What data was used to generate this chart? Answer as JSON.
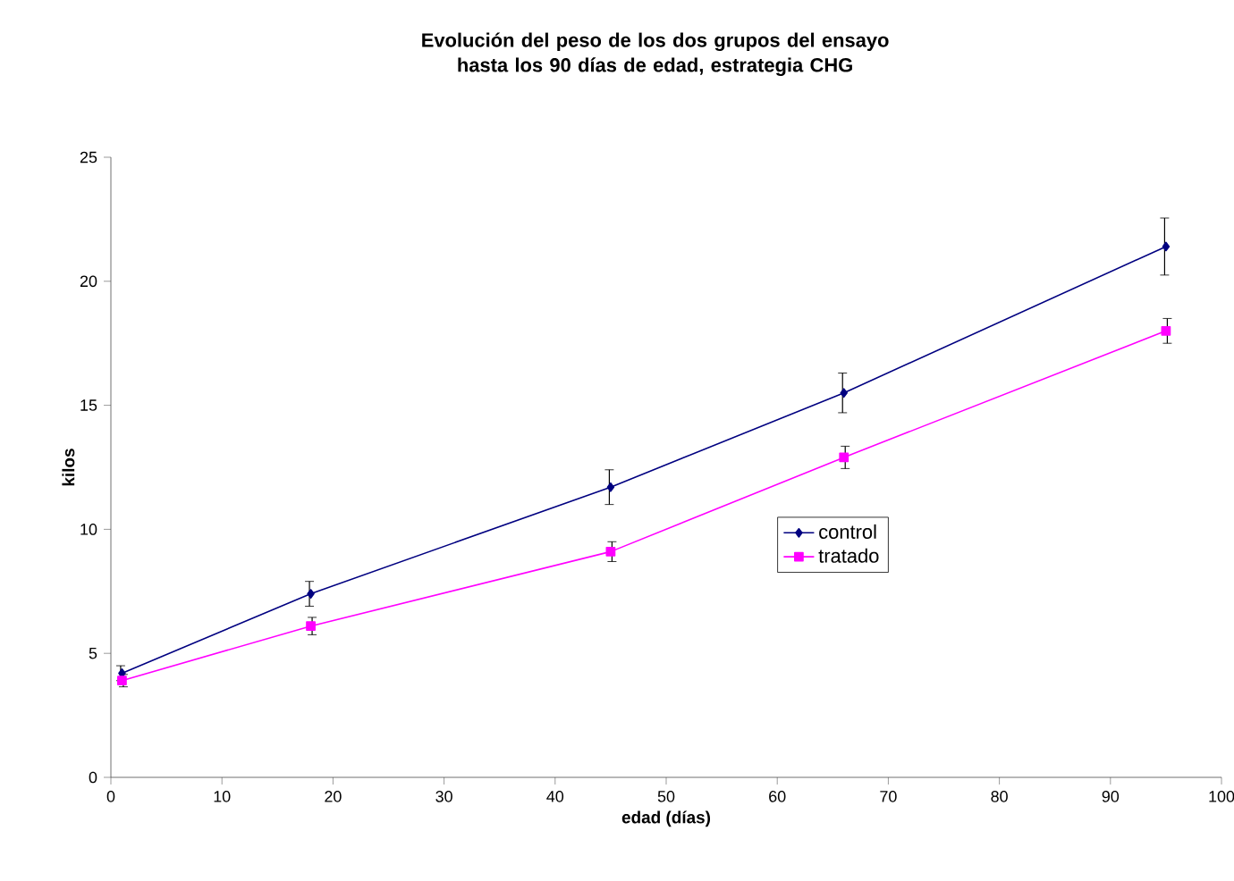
{
  "chart_data": {
    "type": "line",
    "title": "Evolución del peso de los dos grupos del ensayo hasta los 90 días de edad, estrategia  CHG",
    "xlabel": "edad (días)",
    "ylabel": "kilos",
    "x": [
      1,
      18,
      45,
      66,
      95
    ],
    "series": [
      {
        "name": "control",
        "color": "#000080",
        "marker": "diamond",
        "values": [
          4.2,
          7.4,
          11.7,
          15.5,
          21.4
        ],
        "errors": [
          0.3,
          0.5,
          0.7,
          0.8,
          1.15
        ]
      },
      {
        "name": "tratado",
        "color": "#ff00ff",
        "marker": "square",
        "values": [
          3.9,
          6.1,
          9.1,
          12.9,
          18.0
        ],
        "errors": [
          0.25,
          0.35,
          0.4,
          0.45,
          0.5
        ]
      }
    ],
    "xlim": [
      0,
      100
    ],
    "xticks": [
      0,
      10,
      20,
      30,
      40,
      50,
      60,
      70,
      80,
      90,
      100
    ],
    "ylim": [
      0,
      25
    ],
    "yticks": [
      0,
      5,
      10,
      15,
      20,
      25
    ],
    "grid": false,
    "legend": "right"
  }
}
